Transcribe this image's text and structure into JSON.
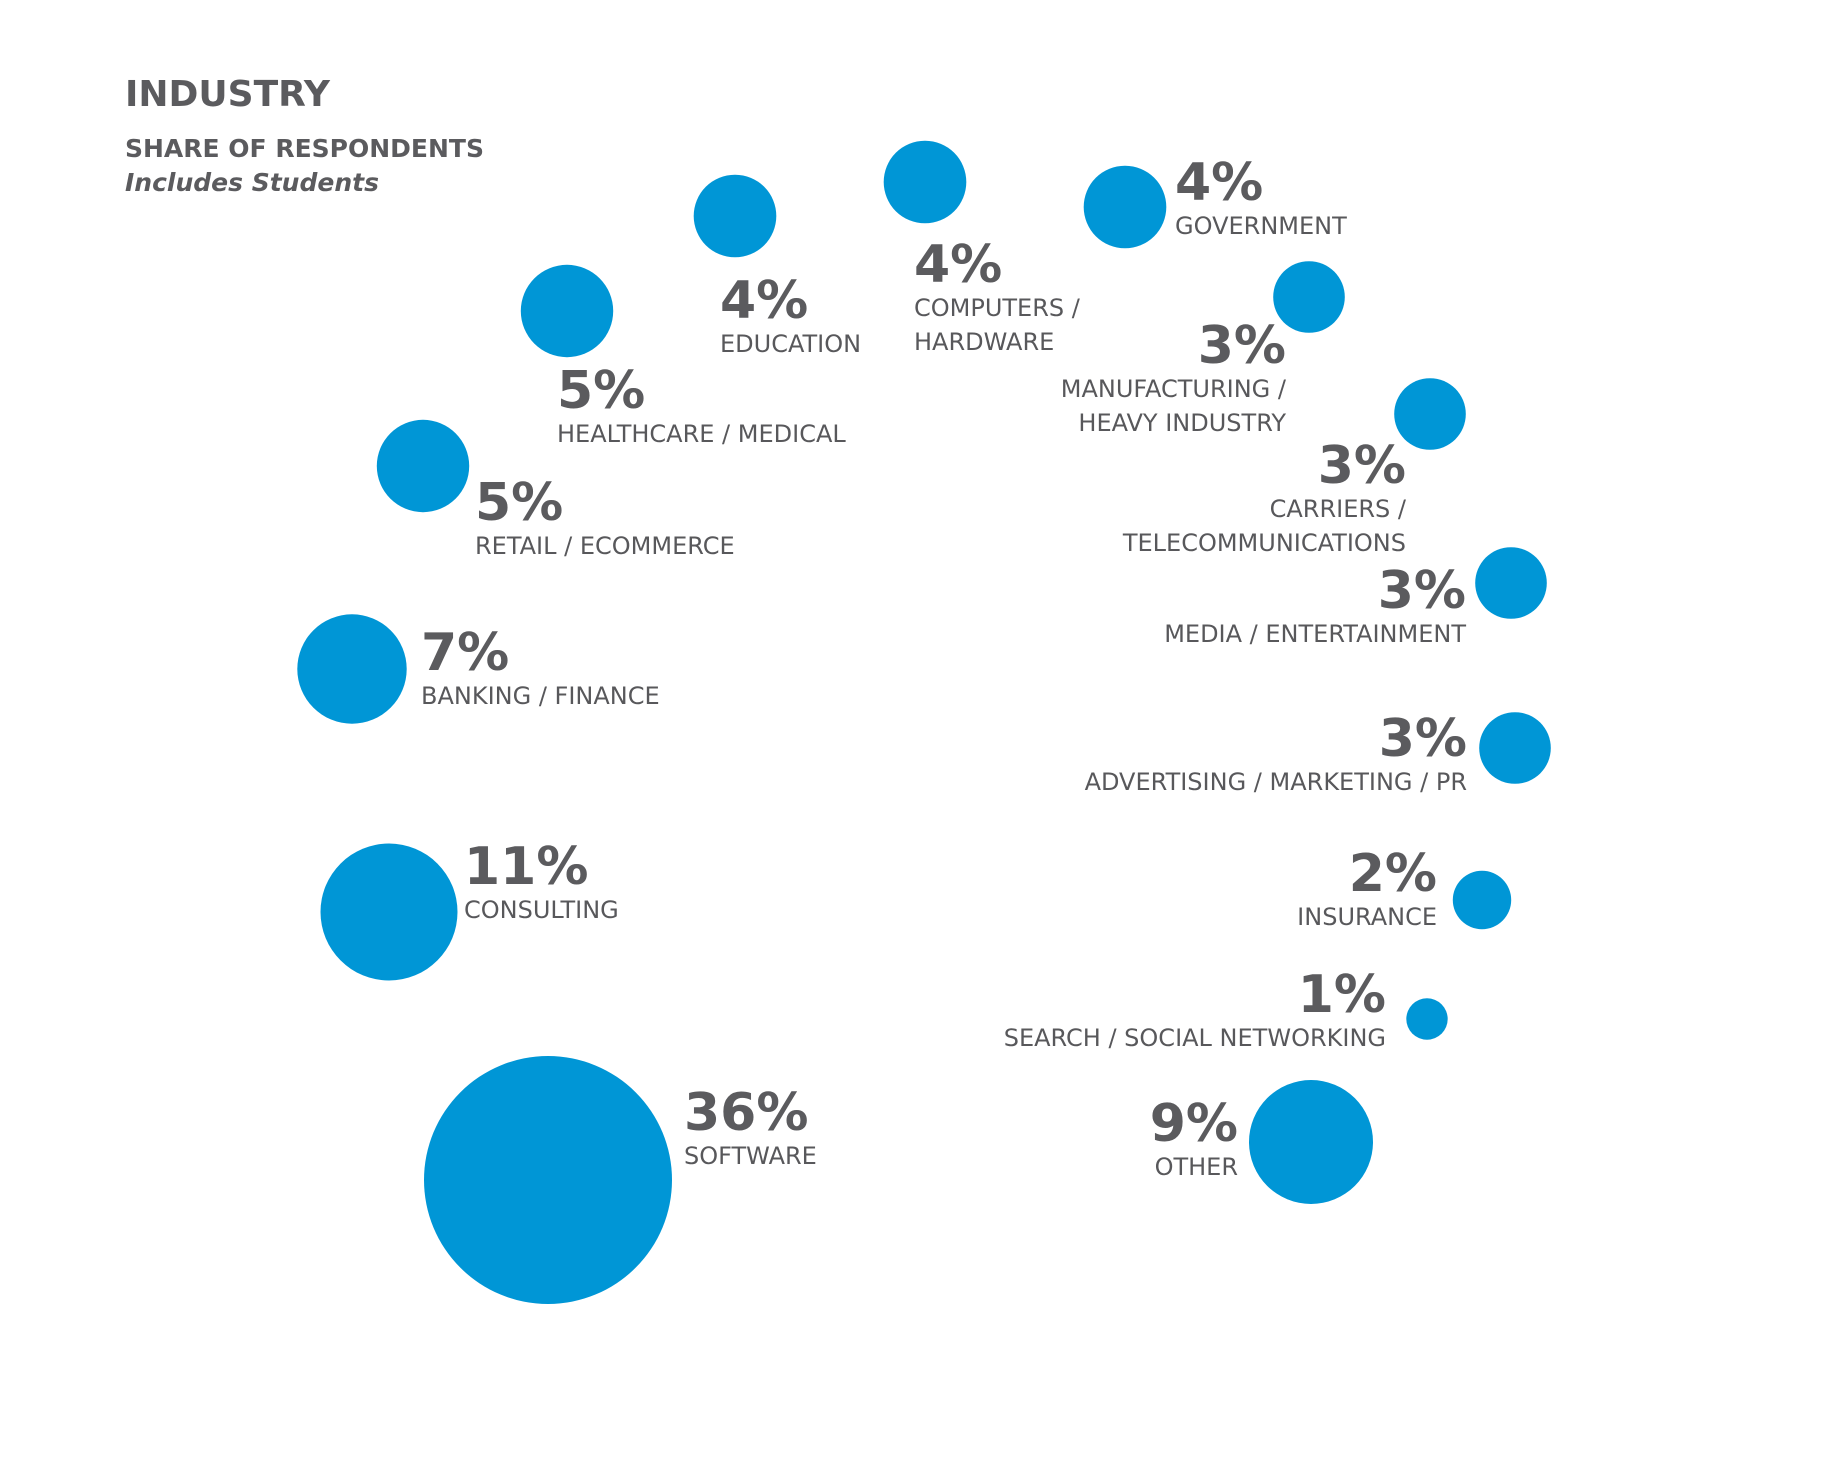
{
  "header": {
    "title": "INDUSTRY",
    "subtitle": "SHARE OF RESPONDENTS",
    "note": "Includes Students"
  },
  "colors": {
    "bubble": "#0096d6",
    "text": "#5b5b5e"
  },
  "chart_data": {
    "type": "bubble",
    "unit": "%",
    "categories": [
      "SOFTWARE",
      "CONSULTING",
      "BANKING / FINANCE",
      "RETAIL / ECOMMERCE",
      "HEALTHCARE / MEDICAL",
      "EDUCATION",
      "COMPUTERS / HARDWARE",
      "GOVERNMENT",
      "MANUFACTURING / HEAVY INDUSTRY",
      "CARRIERS / TELECOMMUNICATIONS",
      "MEDIA / ENTERTAINMENT",
      "ADVERTISING / MARKETING / PR",
      "INSURANCE",
      "SEARCH / SOCIAL NETWORKING",
      "OTHER"
    ],
    "values": [
      36,
      11,
      7,
      5,
      5,
      4,
      4,
      4,
      3,
      3,
      3,
      3,
      2,
      1,
      9
    ],
    "value_labels": [
      "36%",
      "11%",
      "7%",
      "5%",
      "5%",
      "4%",
      "4%",
      "4%",
      "3%",
      "3%",
      "3%",
      "3%",
      "2%",
      "1%",
      "9%"
    ],
    "label_lines": [
      [
        "SOFTWARE"
      ],
      [
        "CONSULTING"
      ],
      [
        "BANKING / FINANCE"
      ],
      [
        "RETAIL / ECOMMERCE"
      ],
      [
        "HEALTHCARE / MEDICAL"
      ],
      [
        "EDUCATION"
      ],
      [
        "COMPUTERS /",
        "HARDWARE"
      ],
      [
        "GOVERNMENT"
      ],
      [
        "MANUFACTURING /",
        "HEAVY INDUSTRY"
      ],
      [
        "CARRIERS /",
        "TELECOMMUNICATIONS"
      ],
      [
        "MEDIA / ENTERTAINMENT"
      ],
      [
        "ADVERTISING / MARKETING / PR"
      ],
      [
        "INSURANCE"
      ],
      [
        "SEARCH / SOCIAL NETWORKING"
      ],
      [
        "OTHER"
      ]
    ]
  }
}
